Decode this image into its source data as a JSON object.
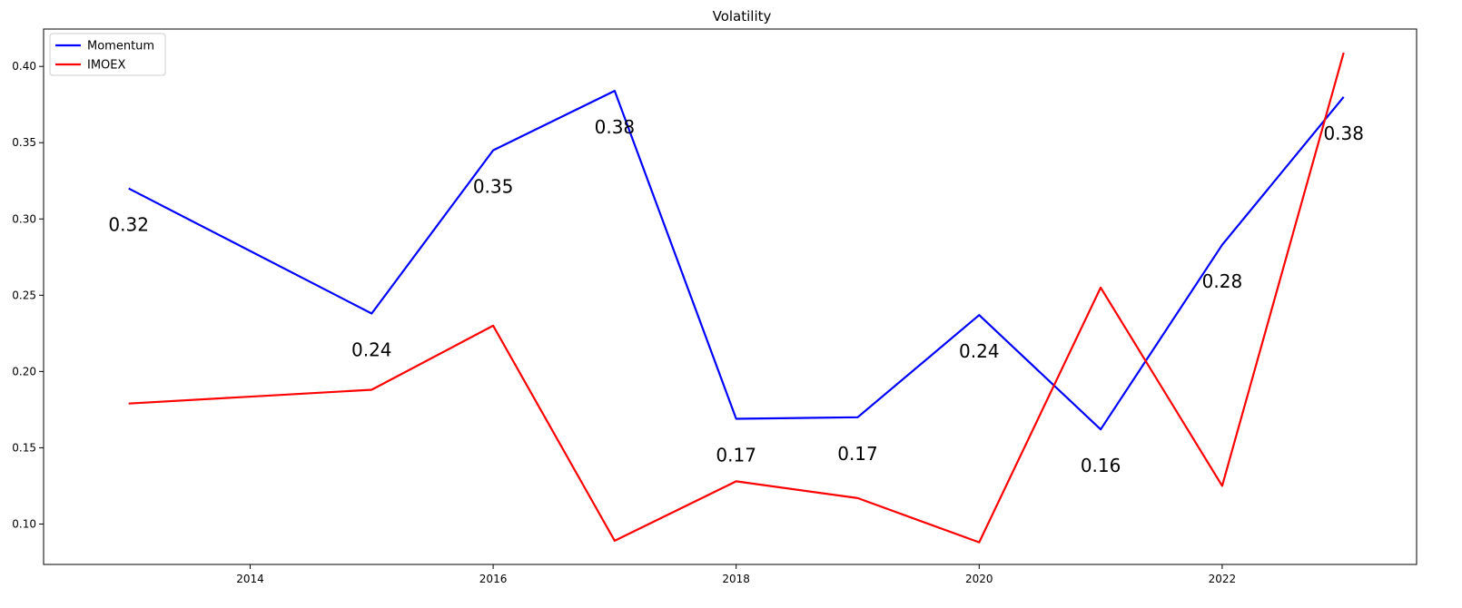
{
  "chart_data": {
    "type": "line",
    "title": "Volatility",
    "xlabel": "",
    "ylabel": "",
    "x": [
      2013,
      2015,
      2016,
      2017,
      2018,
      2019,
      2020,
      2021,
      2022,
      2023
    ],
    "xlim": [
      2012.3,
      2023.6
    ],
    "ylim": [
      0.0735,
      0.4245
    ],
    "x_ticks": [
      2014,
      2016,
      2018,
      2020,
      2022
    ],
    "x_tick_labels": [
      "2014",
      "2016",
      "2018",
      "2020",
      "2022"
    ],
    "y_ticks": [
      0.1,
      0.15,
      0.2,
      0.25,
      0.3,
      0.35,
      0.4
    ],
    "y_tick_labels": [
      "0.10",
      "0.15",
      "0.20",
      "0.25",
      "0.30",
      "0.35",
      "0.40"
    ],
    "grid": false,
    "legend_position": "top-left",
    "series": [
      {
        "name": "Momentum",
        "color": "#0000ff",
        "values": [
          0.32,
          0.238,
          0.345,
          0.384,
          0.169,
          0.17,
          0.237,
          0.162,
          0.283,
          0.38
        ],
        "data_labels": [
          "0.32",
          "0.24",
          "0.35",
          "0.38",
          "0.17",
          "0.17",
          "0.24",
          "0.16",
          "0.28",
          "0.38"
        ]
      },
      {
        "name": "IMOEX",
        "color": "#ff0000",
        "values": [
          0.179,
          0.188,
          0.23,
          0.089,
          0.128,
          0.117,
          0.088,
          0.255,
          0.125,
          0.409
        ]
      }
    ]
  }
}
